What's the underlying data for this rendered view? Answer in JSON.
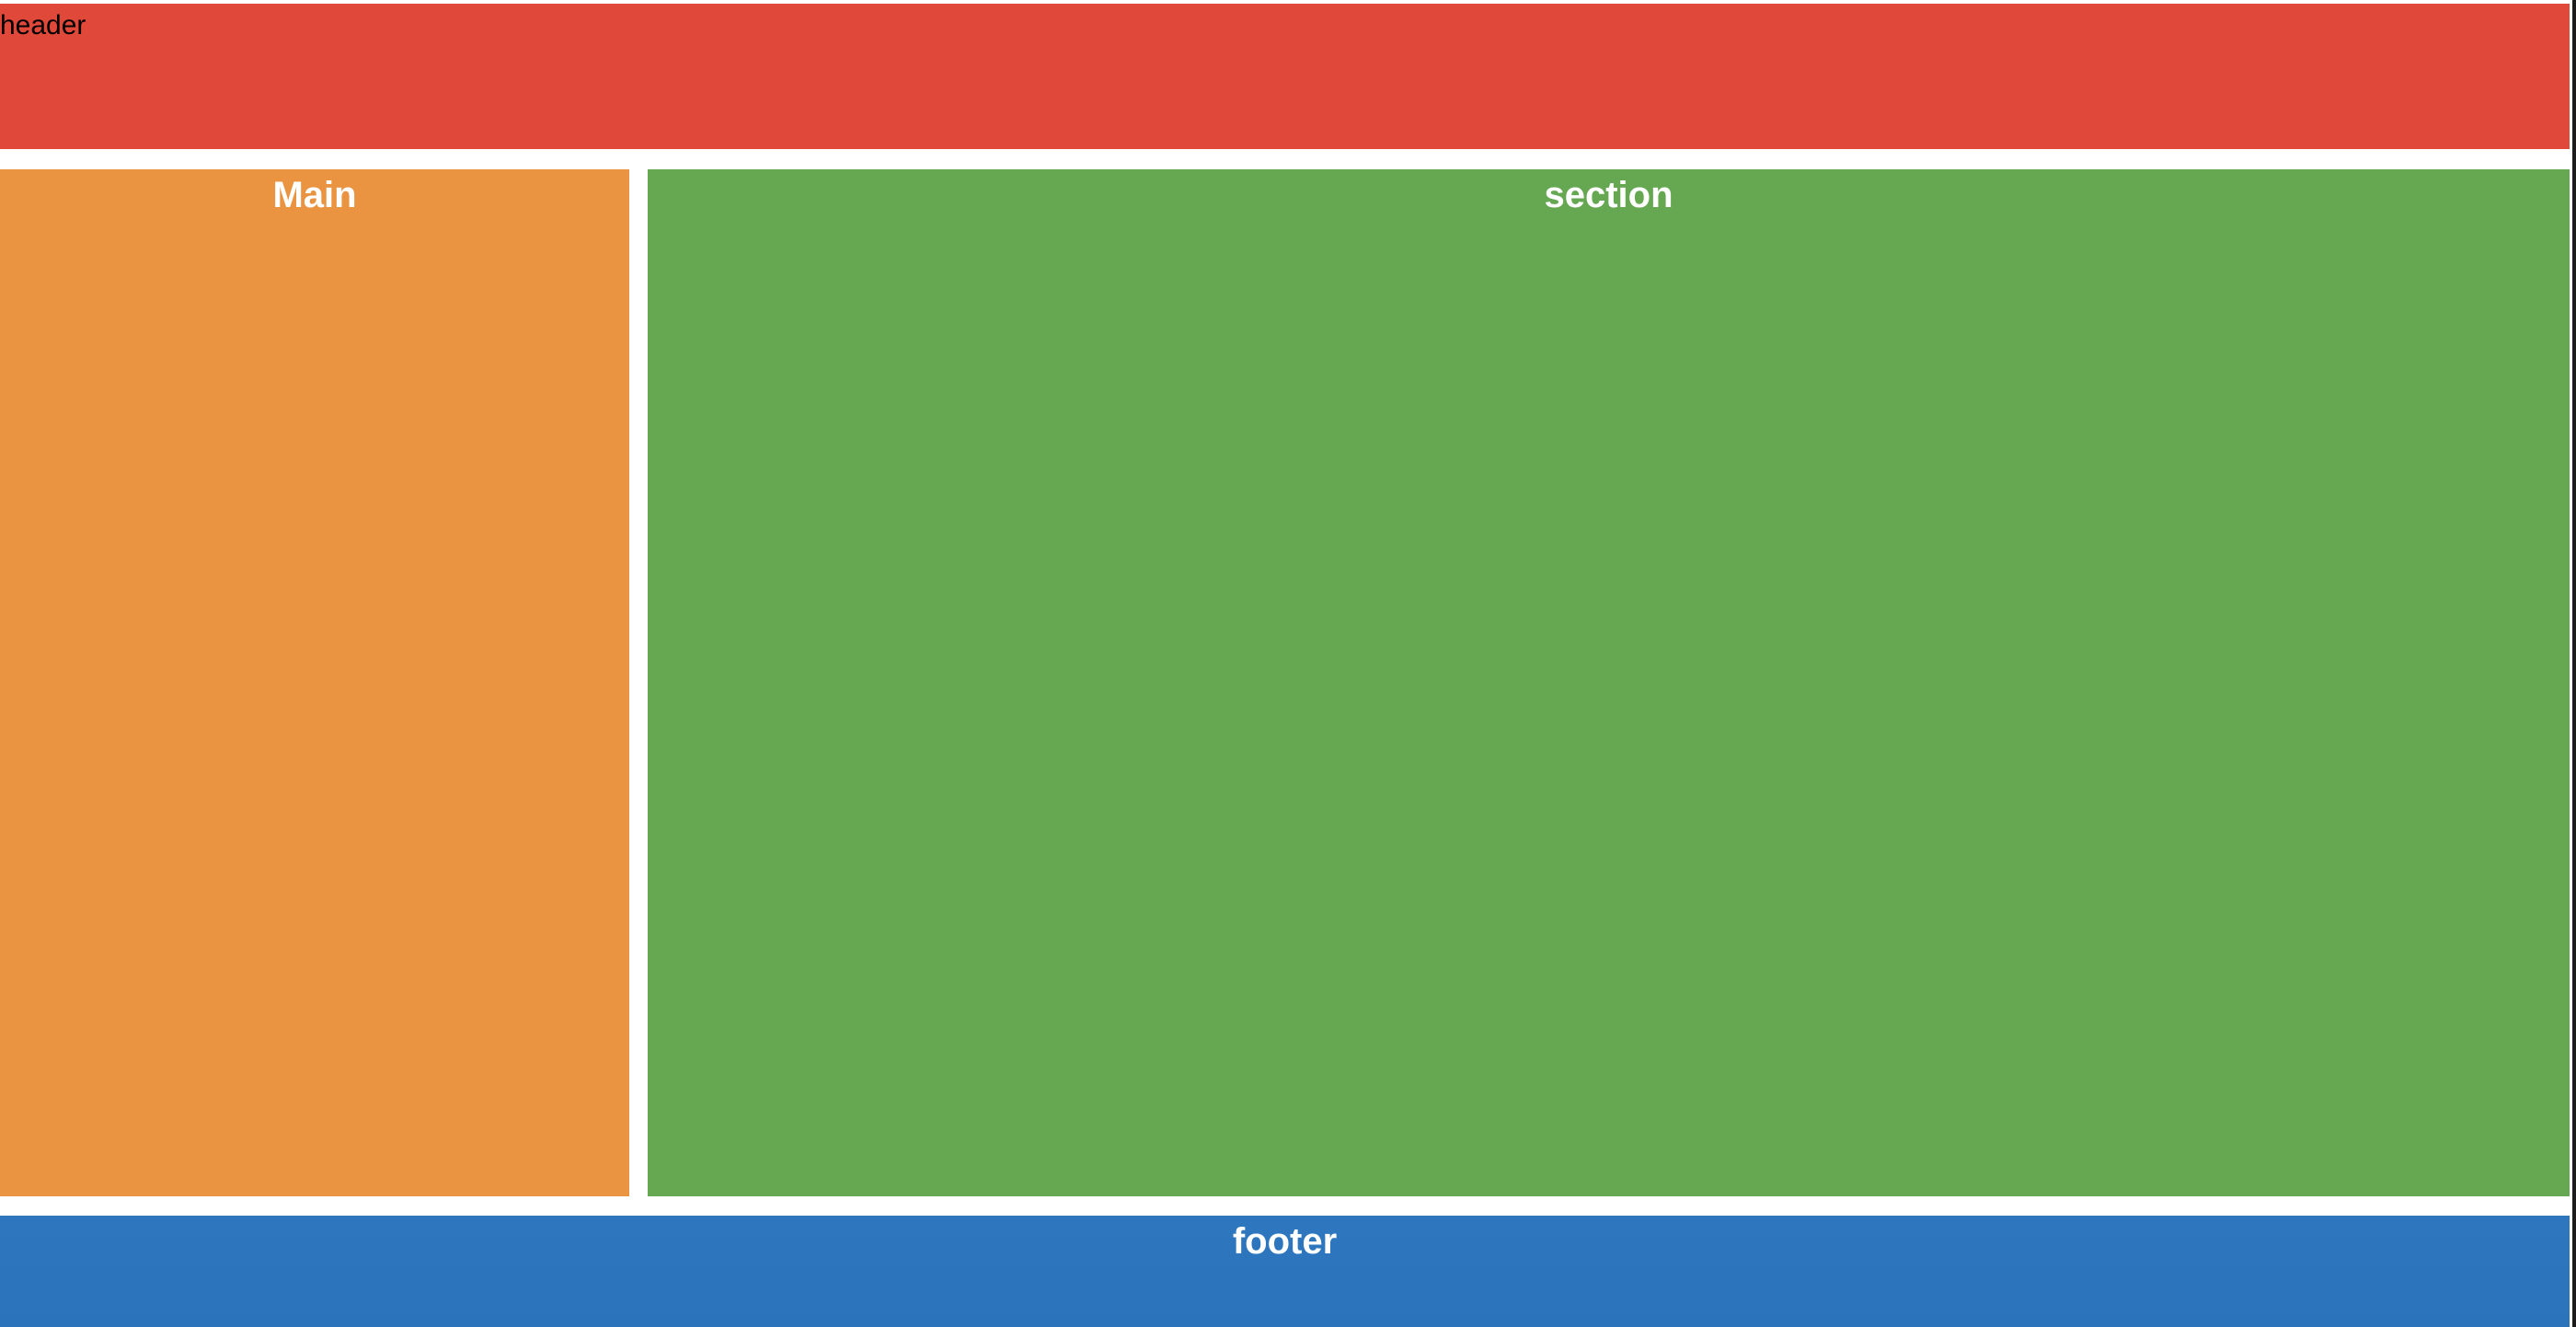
{
  "header": {
    "label": "header",
    "color": "#e0483a"
  },
  "main": {
    "title": "Main",
    "color": "#ea9441"
  },
  "section": {
    "title": "section",
    "color": "#66a752"
  },
  "footer": {
    "title": "footer",
    "color": "#2e77bf"
  }
}
